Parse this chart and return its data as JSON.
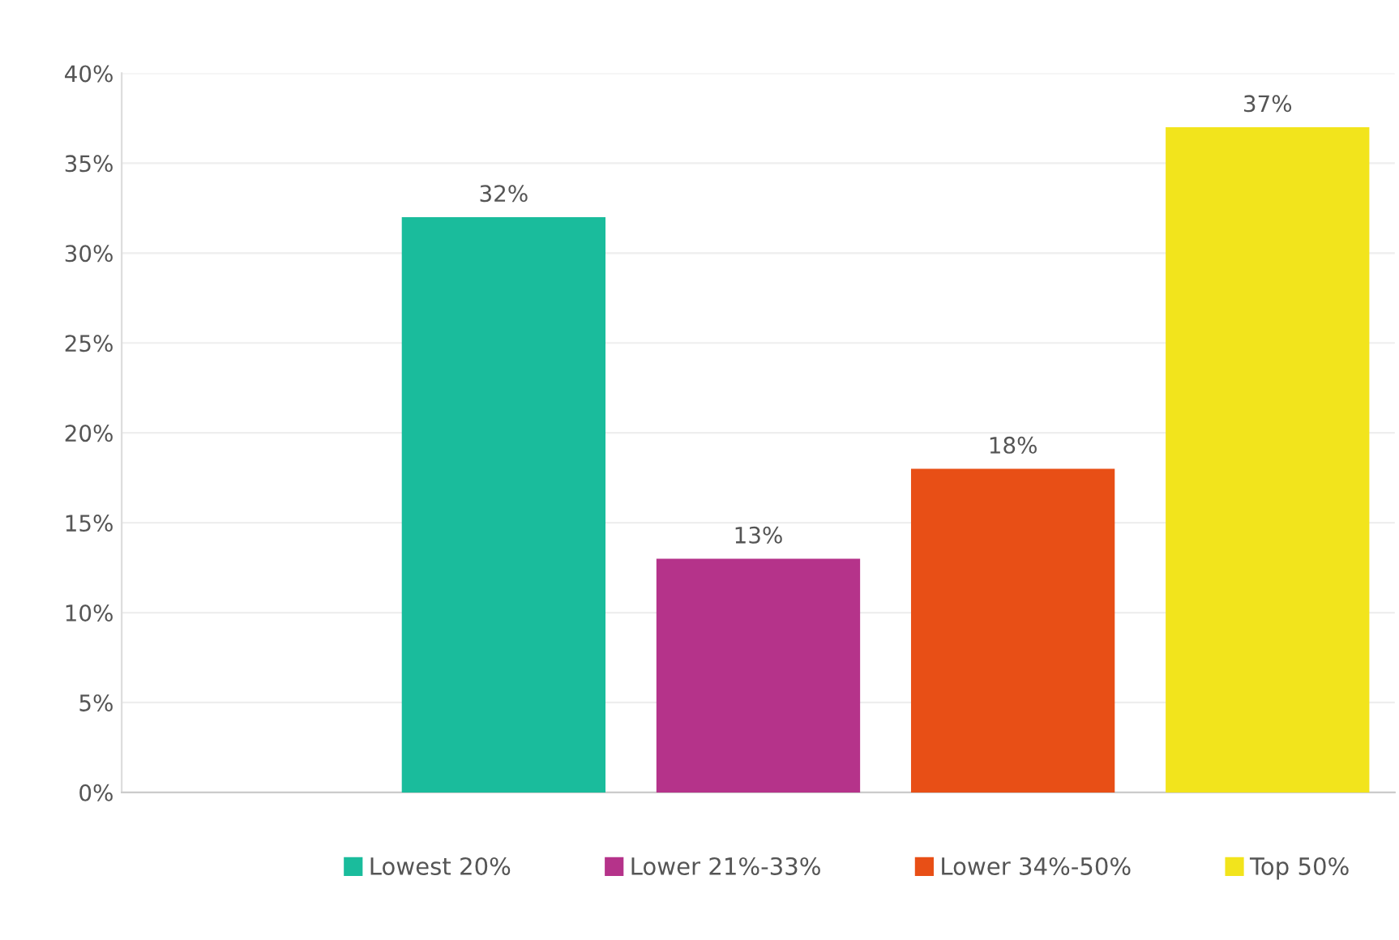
{
  "chart_data": {
    "type": "bar",
    "categories": [
      null,
      null,
      null,
      null,
      null
    ],
    "series": [
      {
        "name": "Lowest 20%",
        "color": "#1abc9c",
        "values": [
          null,
          32,
          null,
          null,
          null
        ]
      },
      {
        "name": "Lower 21%-33%",
        "color": "#b5338a",
        "values": [
          null,
          null,
          13,
          null,
          null
        ]
      },
      {
        "name": "Lower 34%-50%",
        "color": "#e84f16",
        "values": [
          null,
          null,
          null,
          18,
          null
        ]
      },
      {
        "name": "Top 50%",
        "color": "#f2e41c",
        "values": [
          null,
          null,
          null,
          null,
          37
        ]
      }
    ],
    "ylim": [
      0,
      40
    ],
    "yticks": [
      {
        "value": 0,
        "label": "0%"
      },
      {
        "value": 5,
        "label": "5%"
      },
      {
        "value": 10,
        "label": "10%"
      },
      {
        "value": 15,
        "label": "15%"
      },
      {
        "value": 20,
        "label": "20%"
      },
      {
        "value": 25,
        "label": "25%"
      },
      {
        "value": 30,
        "label": "30%"
      },
      {
        "value": 35,
        "label": "35%"
      },
      {
        "value": 40,
        "label": "40%"
      }
    ],
    "value_labels": [
      null,
      "32%",
      "13%",
      "18%",
      "37%"
    ],
    "grid": "y",
    "legend": "bottom",
    "tick_labels": "y"
  }
}
